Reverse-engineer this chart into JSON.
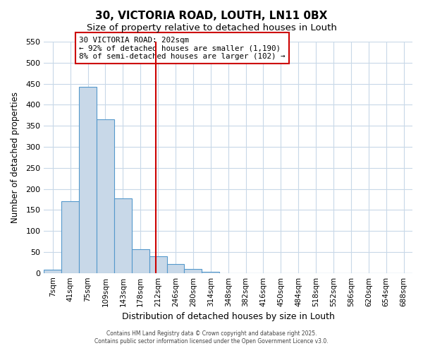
{
  "title": "30, VICTORIA ROAD, LOUTH, LN11 0BX",
  "subtitle": "Size of property relative to detached houses in Louth",
  "xlabel": "Distribution of detached houses by size in Louth",
  "ylabel": "Number of detached properties",
  "bar_labels": [
    "7sqm",
    "41sqm",
    "75sqm",
    "109sqm",
    "143sqm",
    "178sqm",
    "212sqm",
    "246sqm",
    "280sqm",
    "314sqm",
    "348sqm",
    "382sqm",
    "416sqm",
    "450sqm",
    "484sqm",
    "518sqm",
    "552sqm",
    "586sqm",
    "620sqm",
    "654sqm",
    "688sqm"
  ],
  "bar_values": [
    8,
    170,
    443,
    365,
    178,
    57,
    40,
    22,
    10,
    2,
    0,
    0,
    0,
    0,
    0,
    0,
    0,
    0,
    0,
    0,
    0
  ],
  "bar_color": "#c8d8e8",
  "bar_edge_color": "#5599cc",
  "ylim": [
    0,
    550
  ],
  "yticks": [
    0,
    50,
    100,
    150,
    200,
    250,
    300,
    350,
    400,
    450,
    500,
    550
  ],
  "vline_x": 5.88,
  "vline_color": "#cc0000",
  "annotation_title": "30 VICTORIA ROAD: 202sqm",
  "annotation_line1": "← 92% of detached houses are smaller (1,190)",
  "annotation_line2": "8% of semi-detached houses are larger (102) →",
  "annotation_box_color": "#ffffff",
  "annotation_border_color": "#cc0000",
  "footer1": "Contains HM Land Registry data © Crown copyright and database right 2025.",
  "footer2": "Contains public sector information licensed under the Open Government Licence v3.0.",
  "bg_color": "#ffffff",
  "grid_color": "#c8d8e8"
}
